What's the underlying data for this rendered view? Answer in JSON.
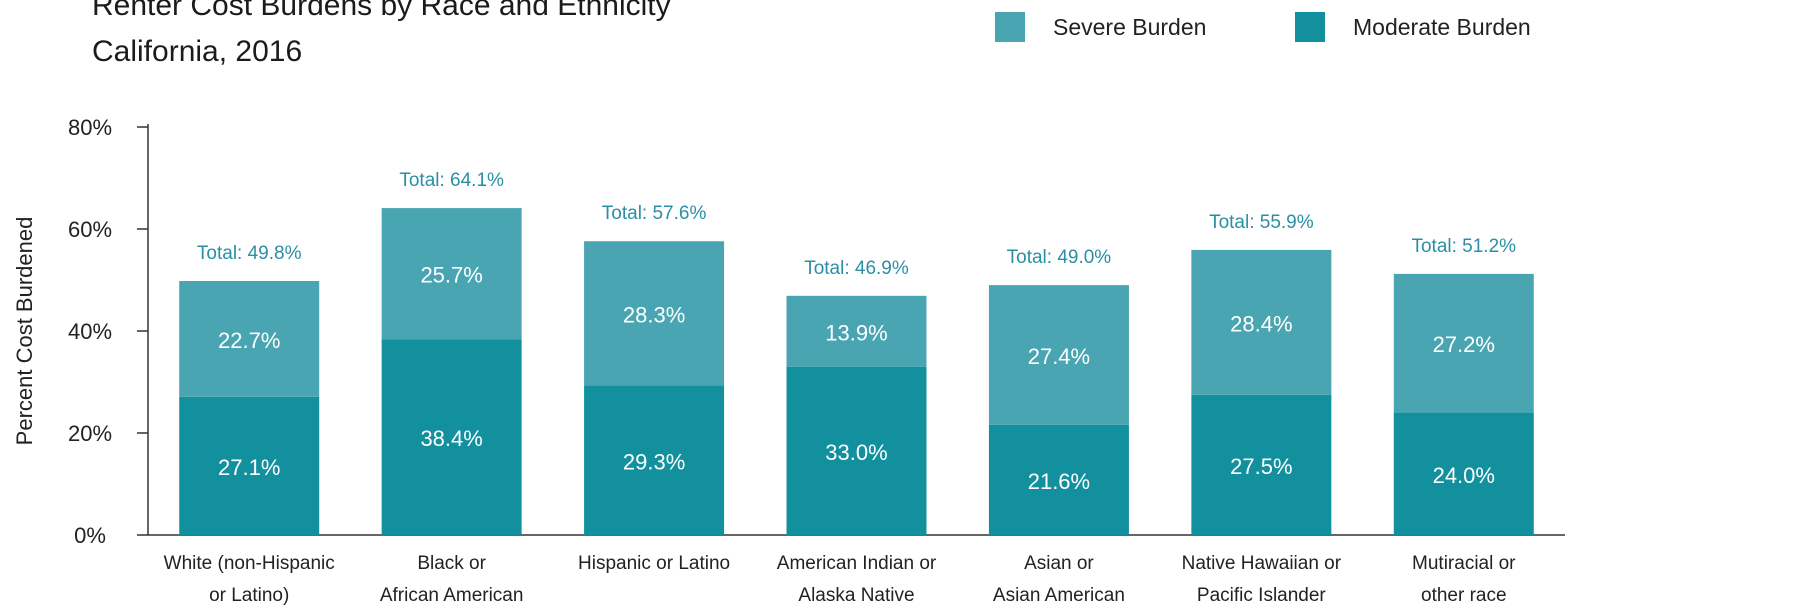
{
  "chart_data": {
    "type": "bar",
    "stacked": true,
    "title": "Renter Cost Burdens by Race and Ethnicity",
    "subtitle": "California, 2016",
    "ylabel": "Percent Cost Burdened",
    "ylim": [
      0,
      80
    ],
    "yticks": [
      "0%",
      "20%",
      "40%",
      "60%",
      "80%"
    ],
    "ytick_values": [
      0,
      20,
      40,
      60,
      80
    ],
    "grid": false,
    "legend_position": "top-right",
    "categories": [
      [
        "White (non-Hispanic",
        "or Latino)"
      ],
      [
        "Black or",
        "African American"
      ],
      [
        "Hispanic or Latino"
      ],
      [
        "American Indian or",
        "Alaska Native"
      ],
      [
        "Asian or",
        "Asian American"
      ],
      [
        "Native Hawaiian or",
        "Pacific Islander"
      ],
      [
        "Mutiracial or",
        "other race"
      ]
    ],
    "series": [
      {
        "name": "Moderate Burden",
        "color": "#13909e",
        "values": [
          27.1,
          38.4,
          29.3,
          33.0,
          21.6,
          27.5,
          24.0
        ],
        "labels": [
          "27.1%",
          "38.4%",
          "29.3%",
          "33.0%",
          "21.6%",
          "27.5%",
          "24.0%"
        ]
      },
      {
        "name": "Severe Burden",
        "color": "#4aa5b2",
        "values": [
          22.7,
          25.7,
          28.3,
          13.9,
          27.4,
          28.4,
          27.2
        ],
        "labels": [
          "22.7%",
          "25.7%",
          "28.3%",
          "13.9%",
          "27.4%",
          "28.4%",
          "27.2%"
        ]
      }
    ],
    "totals": [
      49.8,
      64.1,
      57.6,
      46.9,
      49.0,
      55.9,
      51.2
    ],
    "total_labels": [
      "Total: 49.8%",
      "Total: 64.1%",
      "Total: 57.6%",
      "Total: 46.9%",
      "Total: 49.0%",
      "Total: 55.9%",
      "Total: 51.2%"
    ],
    "total_label_color": "#2a8fa5"
  },
  "legend": [
    {
      "label": "Severe Burden",
      "color": "#4aa5b2"
    },
    {
      "label": "Moderate Burden",
      "color": "#13909e"
    }
  ]
}
